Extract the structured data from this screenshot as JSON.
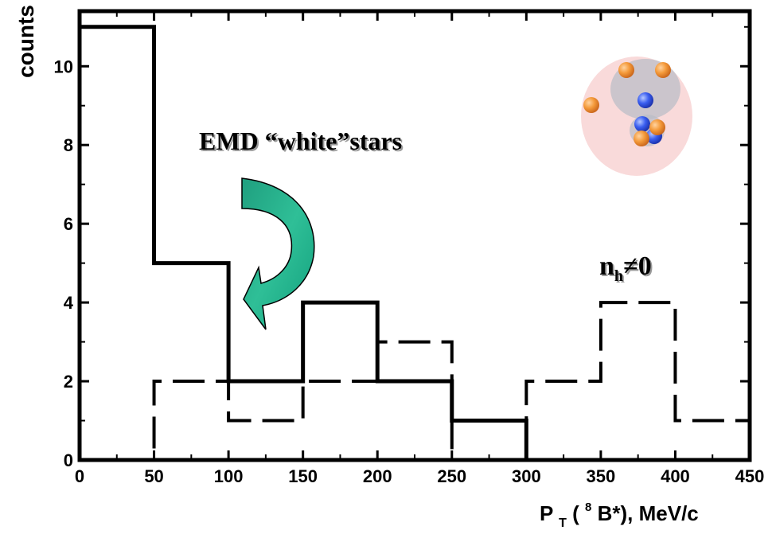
{
  "chart_data": {
    "type": "histogram",
    "title": "",
    "xlabel": "P",
    "xlabel_sub": "T",
    "xlabel_paren_open": "(",
    "xlabel_sup": "8",
    "xlabel_rest": "B*), MeV/c",
    "ylabel": "counts",
    "xlim": [
      0,
      450
    ],
    "ylim": [
      0,
      11.4
    ],
    "xticks": [
      0,
      50,
      100,
      150,
      200,
      250,
      300,
      350,
      400,
      450
    ],
    "yticks": [
      0,
      2,
      4,
      6,
      8,
      10
    ],
    "bin_edges": [
      0,
      50,
      100,
      150,
      200,
      250,
      300,
      350,
      400,
      450
    ],
    "series": [
      {
        "style": "solid",
        "values": [
          11,
          5,
          2,
          4,
          2,
          1,
          0,
          0,
          0
        ]
      },
      {
        "style": "dashed",
        "values": [
          0,
          2,
          1,
          2,
          3,
          0,
          2,
          4,
          1
        ]
      }
    ],
    "annotations": {
      "emd_label": "EMD “white”stars",
      "nh_main": "n",
      "nh_sub": "h",
      "nh_rest": "≠0"
    }
  }
}
